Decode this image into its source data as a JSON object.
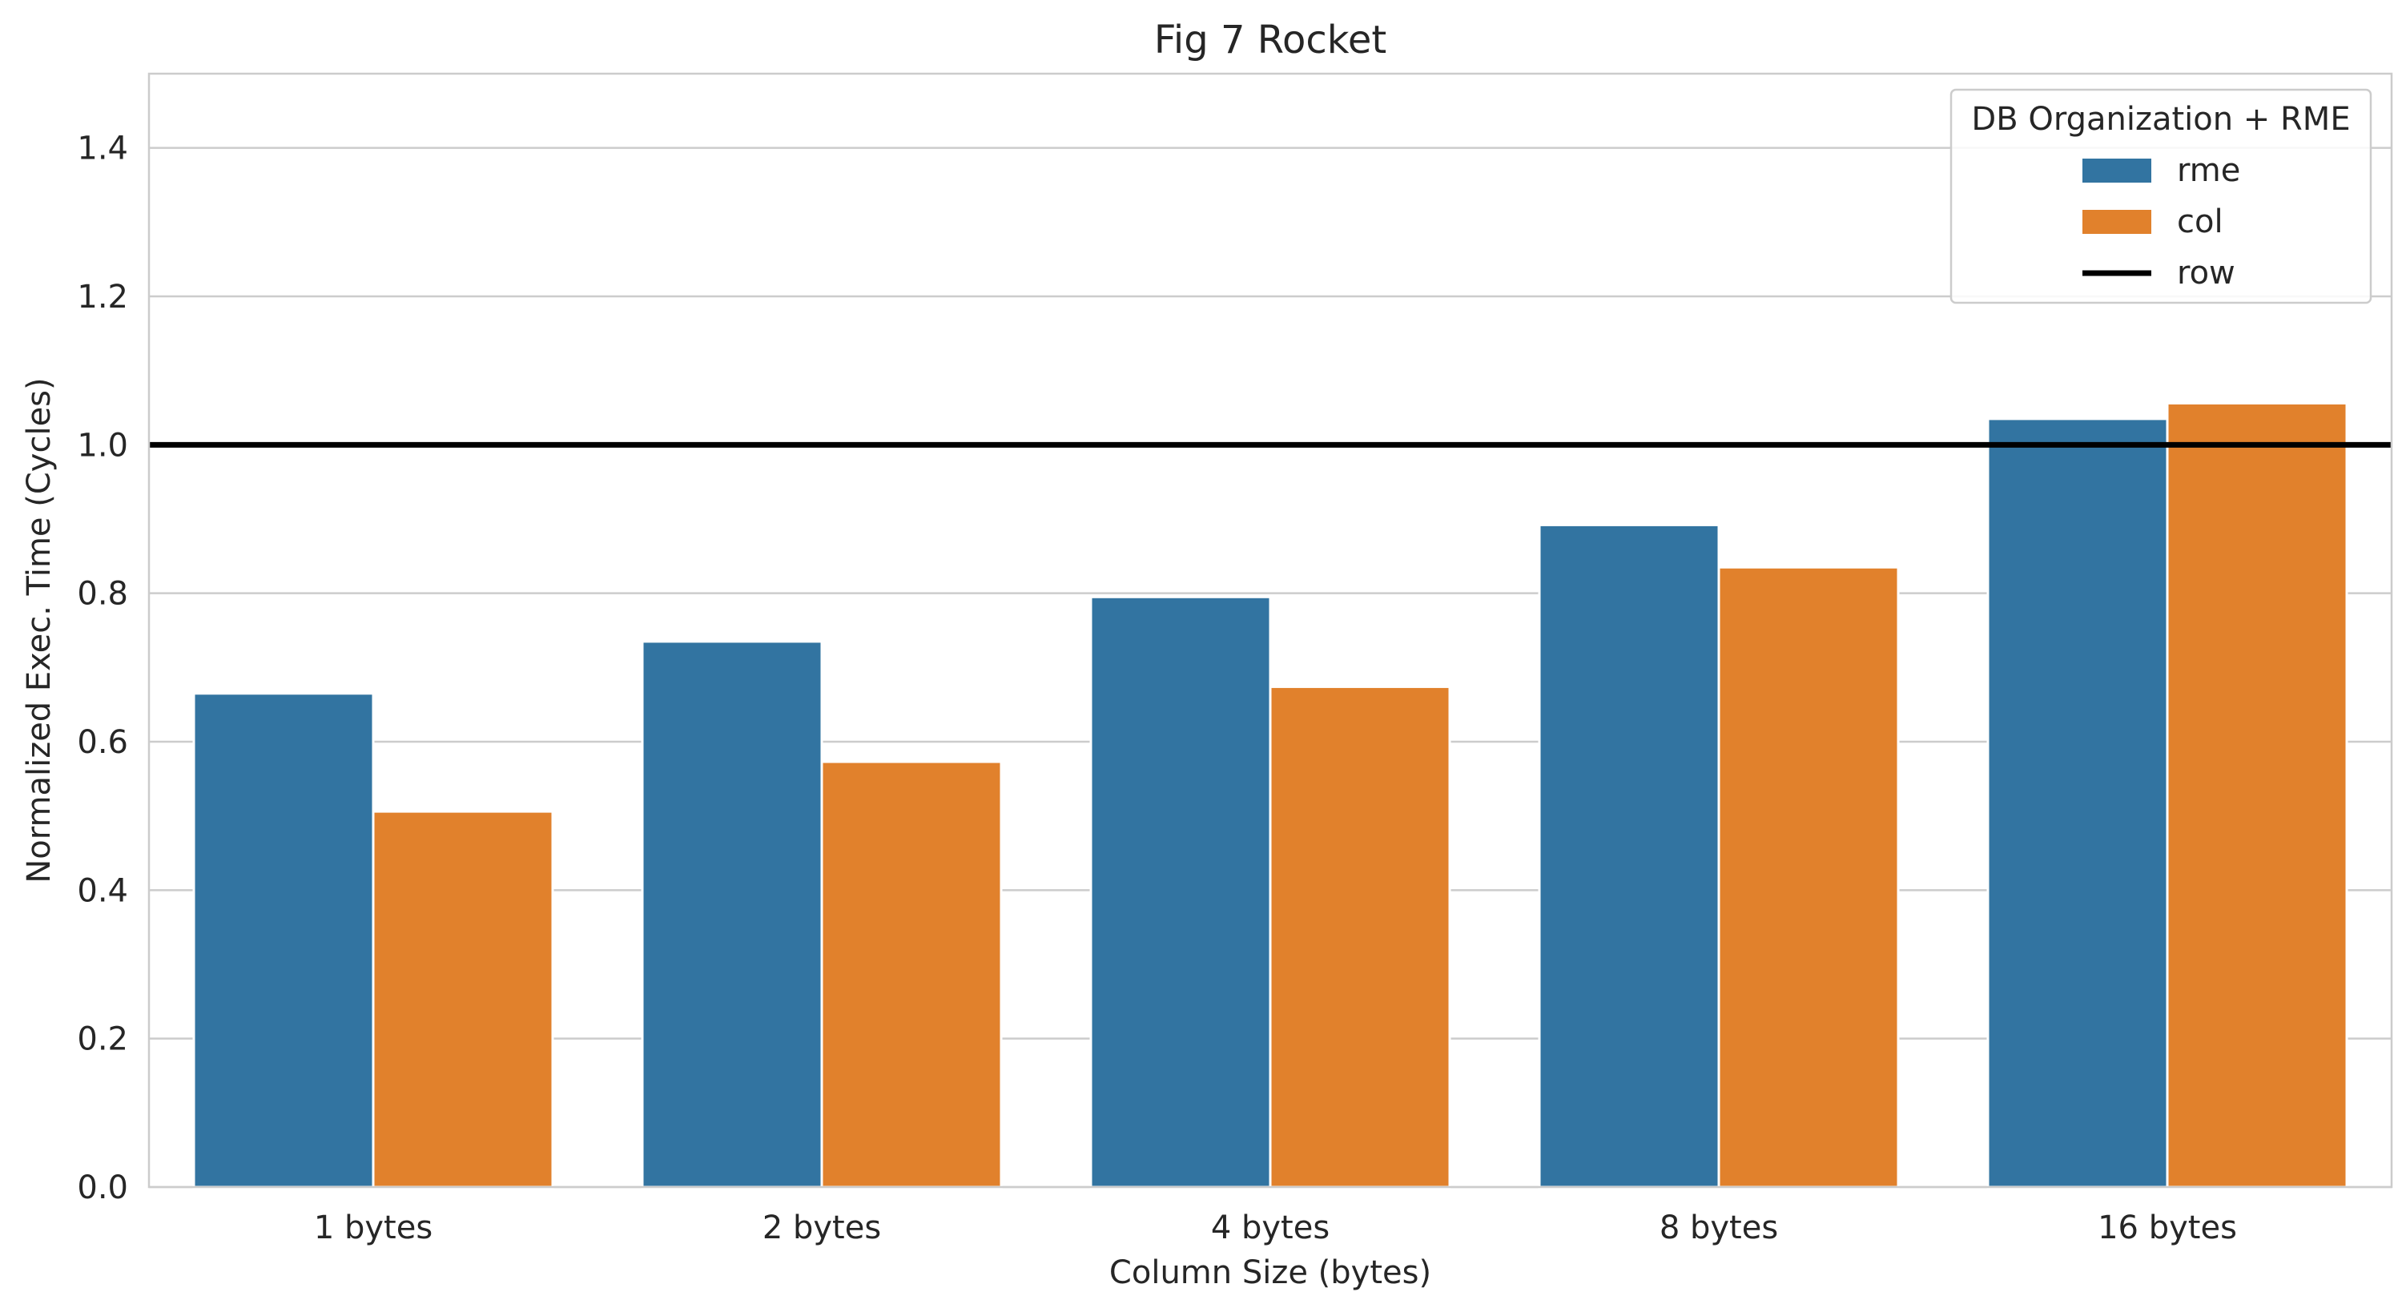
{
  "chart_data": {
    "type": "bar",
    "title": "Fig 7 Rocket",
    "xlabel": "Column Size (bytes)",
    "ylabel": "Normalized Exec. Time (Cycles)",
    "categories": [
      "1 bytes",
      "2 bytes",
      "4 bytes",
      "8 bytes",
      "16 bytes"
    ],
    "series": [
      {
        "name": "rme",
        "color": "#3274a1",
        "values": [
          0.665,
          0.735,
          0.795,
          0.892,
          1.035
        ]
      },
      {
        "name": "col",
        "color": "#e1812c",
        "values": [
          0.506,
          0.573,
          0.674,
          0.835,
          1.056
        ]
      }
    ],
    "reference_line": {
      "name": "row",
      "y": 1.0,
      "color": "#000000"
    },
    "ylim": [
      0,
      1.5
    ],
    "yticks": [
      0.0,
      0.2,
      0.4,
      0.6,
      0.8,
      1.0,
      1.2,
      1.4
    ],
    "ytick_labels": [
      "0.0",
      "0.2",
      "0.4",
      "0.6",
      "0.8",
      "1.0",
      "1.2",
      "1.4"
    ],
    "grid": "horizontal",
    "legend": {
      "title": "DB Organization + RME",
      "placement": "top-right",
      "entries": [
        "rme",
        "col",
        "row"
      ]
    }
  }
}
